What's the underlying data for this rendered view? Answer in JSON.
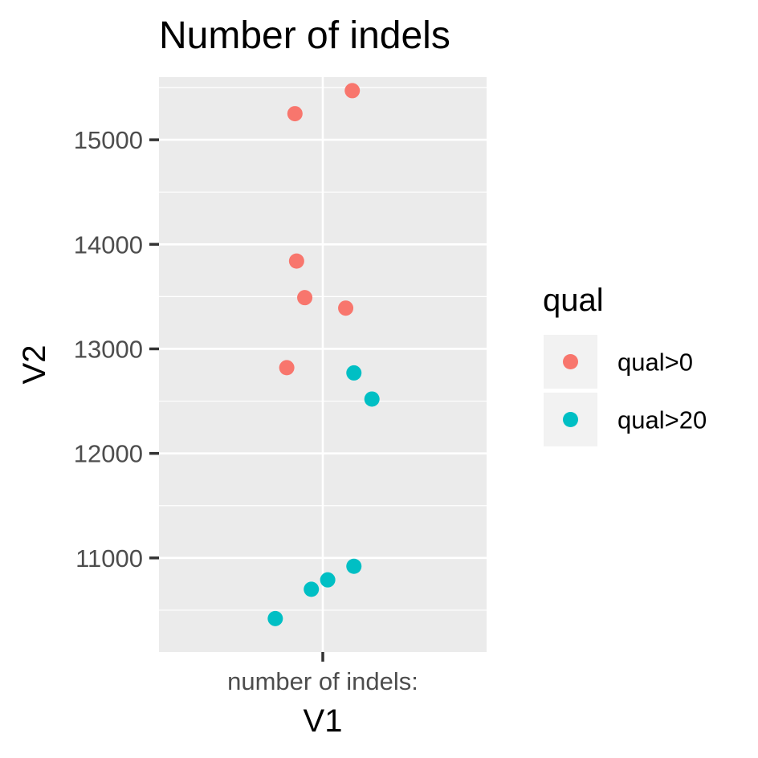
{
  "chart_data": {
    "type": "scatter",
    "title": "Number of indels",
    "xlabel": "V1",
    "ylabel": "V2",
    "x_categories": [
      "number of indels:"
    ],
    "ylim": [
      10100,
      15600
    ],
    "y_ticks": [
      11000,
      12000,
      13000,
      14000,
      15000
    ],
    "grid": true,
    "legend": {
      "title": "qual",
      "position": "right"
    },
    "series": [
      {
        "name": "qual>0",
        "color": "#F8766D",
        "points": [
          {
            "x": "number of indels:",
            "jitter": 0.18,
            "y": 15470
          },
          {
            "x": "number of indels:",
            "jitter": -0.17,
            "y": 15250
          },
          {
            "x": "number of indels:",
            "jitter": -0.16,
            "y": 13840
          },
          {
            "x": "number of indels:",
            "jitter": -0.11,
            "y": 13490
          },
          {
            "x": "number of indels:",
            "jitter": 0.14,
            "y": 13390
          },
          {
            "x": "number of indels:",
            "jitter": -0.22,
            "y": 12820
          }
        ]
      },
      {
        "name": "qual>20",
        "color": "#00BFC4",
        "points": [
          {
            "x": "number of indels:",
            "jitter": 0.19,
            "y": 12770
          },
          {
            "x": "number of indels:",
            "jitter": 0.3,
            "y": 12520
          },
          {
            "x": "number of indels:",
            "jitter": 0.19,
            "y": 10920
          },
          {
            "x": "number of indels:",
            "jitter": 0.03,
            "y": 10790
          },
          {
            "x": "number of indels:",
            "jitter": -0.07,
            "y": 10700
          },
          {
            "x": "number of indels:",
            "jitter": -0.29,
            "y": 10420
          }
        ]
      }
    ]
  }
}
